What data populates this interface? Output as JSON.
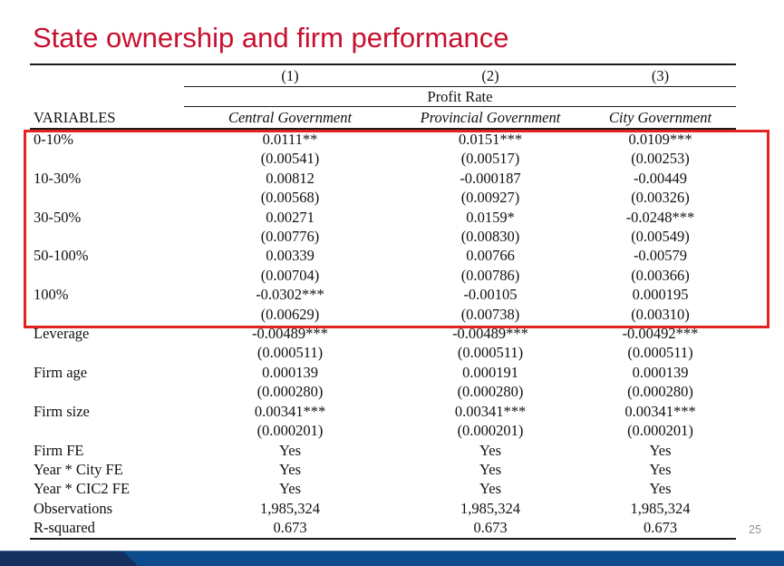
{
  "slide": {
    "title": "State ownership and firm performance",
    "page_number": "25"
  },
  "colors": {
    "title_red": "#c8102e",
    "box_red": "#e2231f",
    "bar_blue": "#0d4c8c",
    "bar_dark_blue": "#14305e"
  },
  "table": {
    "col_numbers": [
      "(1)",
      "(2)",
      "(3)"
    ],
    "span_header": "Profit Rate",
    "variables_label": "VARIABLES",
    "col_headers": [
      "Central Government",
      "Provincial Government",
      "City Government"
    ],
    "rows": [
      {
        "label": "0-10%",
        "c1": "0.0111**",
        "c2": "0.0151***",
        "c3": "0.0109***"
      },
      {
        "label": "",
        "c1": "(0.00541)",
        "c2": "(0.00517)",
        "c3": "(0.00253)"
      },
      {
        "label": "10-30%",
        "c1": "0.00812",
        "c2": "-0.000187",
        "c3": "-0.00449"
      },
      {
        "label": "",
        "c1": "(0.00568)",
        "c2": "(0.00927)",
        "c3": "(0.00326)"
      },
      {
        "label": "30-50%",
        "c1": "0.00271",
        "c2": "0.0159*",
        "c3": "-0.0248***"
      },
      {
        "label": "",
        "c1": "(0.00776)",
        "c2": "(0.00830)",
        "c3": "(0.00549)"
      },
      {
        "label": "50-100%",
        "c1": "0.00339",
        "c2": "0.00766",
        "c3": "-0.00579"
      },
      {
        "label": "",
        "c1": "(0.00704)",
        "c2": "(0.00786)",
        "c3": "(0.00366)"
      },
      {
        "label": "100%",
        "c1": "-0.0302***",
        "c2": "-0.00105",
        "c3": "0.000195"
      },
      {
        "label": "",
        "c1": "(0.00629)",
        "c2": "(0.00738)",
        "c3": "(0.00310)"
      },
      {
        "label": "Leverage",
        "c1": "-0.00489***",
        "c2": "-0.00489***",
        "c3": "-0.00492***"
      },
      {
        "label": "",
        "c1": "(0.000511)",
        "c2": "(0.000511)",
        "c3": "(0.000511)"
      },
      {
        "label": "Firm age",
        "c1": "0.000139",
        "c2": "0.000191",
        "c3": "0.000139"
      },
      {
        "label": "",
        "c1": "(0.000280)",
        "c2": "(0.000280)",
        "c3": "(0.000280)"
      },
      {
        "label": "Firm size",
        "c1": "0.00341***",
        "c2": "0.00341***",
        "c3": "0.00341***"
      },
      {
        "label": "",
        "c1": "(0.000201)",
        "c2": "(0.000201)",
        "c3": "(0.000201)"
      },
      {
        "label": "Firm FE",
        "c1": "Yes",
        "c2": "Yes",
        "c3": "Yes"
      },
      {
        "label": "Year * City FE",
        "c1": "Yes",
        "c2": "Yes",
        "c3": "Yes"
      },
      {
        "label": "Year * CIC2 FE",
        "c1": "Yes",
        "c2": "Yes",
        "c3": "Yes"
      },
      {
        "label": "Observations",
        "c1": "1,985,324",
        "c2": "1,985,324",
        "c3": "1,985,324"
      },
      {
        "label": "R-squared",
        "c1": "0.673",
        "c2": "0.673",
        "c3": "0.673"
      }
    ]
  }
}
